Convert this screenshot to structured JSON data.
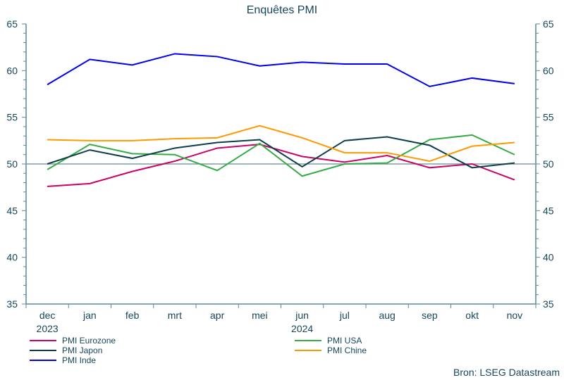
{
  "chart_data": {
    "type": "line",
    "title": "Enquêtes PMI",
    "categories": [
      "dec",
      "jan",
      "feb",
      "mrt",
      "apr",
      "mei",
      "jun",
      "jul",
      "aug",
      "sep",
      "okt",
      "nov"
    ],
    "year_labels": {
      "0": "2023",
      "6": "2024"
    },
    "ylim": [
      35,
      65
    ],
    "yticks": [
      35,
      40,
      45,
      50,
      55,
      60,
      65
    ],
    "reference_line": 50,
    "legend": "bottom",
    "series": [
      {
        "name": "PMI Eurozone",
        "color": "#cc0066",
        "values": [
          47.6,
          47.9,
          49.2,
          50.3,
          51.7,
          52.1,
          50.8,
          50.2,
          50.9,
          49.6,
          50.0,
          48.3
        ]
      },
      {
        "name": "PMI USA",
        "color": "#33aa44",
        "values": [
          49.4,
          52.1,
          51.1,
          51.0,
          49.3,
          52.2,
          48.7,
          50.0,
          50.1,
          52.6,
          53.1,
          51.0
        ]
      },
      {
        "name": "PMI Japon",
        "color": "#0d3d4a",
        "values": [
          50.0,
          51.5,
          50.6,
          51.7,
          52.3,
          52.6,
          49.7,
          52.5,
          52.9,
          52.0,
          49.6,
          50.1
        ]
      },
      {
        "name": "PMI Chine",
        "color": "#ff9900",
        "values": [
          52.6,
          52.5,
          52.5,
          52.7,
          52.8,
          54.1,
          52.8,
          51.2,
          51.2,
          50.3,
          51.9,
          52.3
        ]
      },
      {
        "name": "PMI Inde",
        "color": "#0000ee",
        "values": [
          58.5,
          61.2,
          60.6,
          61.8,
          61.5,
          60.5,
          60.9,
          60.7,
          60.7,
          58.3,
          59.2,
          58.6
        ]
      }
    ]
  },
  "source": "Bron: LSEG Datastream"
}
